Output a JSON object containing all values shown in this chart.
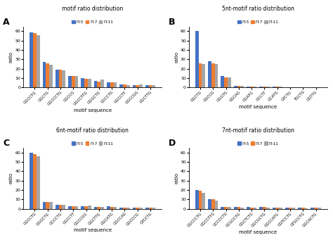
{
  "panels": {
    "A": {
      "title": "motif ratio distribution",
      "categories": [
        "GGCCTG",
        "GGCTG",
        "GGCCCTG",
        "GGCCG",
        "GGCCTTG",
        "GGGCTG",
        "GCCCTG",
        "GGCCTT",
        "GGCCGG",
        "GGCTTG"
      ],
      "II5": [
        59,
        27,
        19,
        12,
        10,
        7,
        5,
        3,
        2.5,
        2
      ],
      "II7": [
        58,
        26,
        19,
        12,
        9,
        6,
        5,
        3,
        2.5,
        2
      ],
      "II11": [
        56,
        24,
        18,
        12,
        9,
        8,
        5,
        2,
        3,
        2
      ]
    },
    "B": {
      "title": "5nt-motif ratio distribution",
      "categories": [
        "GGCTG",
        "GGCCG",
        "GGGTG",
        "GGCAG",
        "GGATG",
        "GCCTT",
        "GCATG",
        "GTCTG",
        "TGCTG",
        "GGTTG"
      ],
      "II5": [
        60,
        28,
        12,
        1.5,
        1.0,
        0.5,
        0.5,
        0.3,
        0.2,
        0.2
      ],
      "II7": [
        26,
        26,
        11,
        1.5,
        1.0,
        0.5,
        1.0,
        0.2,
        0.1,
        0.1
      ],
      "II11": [
        25,
        25,
        11,
        1.5,
        1.0,
        0.5,
        0.5,
        0.2,
        0.1,
        0.1
      ]
    },
    "C": {
      "title": "6nt-motif ratio distribution",
      "categories": [
        "GGCCTG",
        "GGGCTG",
        "GCCCTG",
        "GGCCTT",
        "GGCCGG",
        "GGCTTG",
        "GGCATG",
        "GGCCAG",
        "GGCCCG",
        "GTCCTG"
      ],
      "II5": [
        60,
        7,
        4,
        3,
        2.5,
        2,
        2.5,
        1.5,
        1.5,
        1.5
      ],
      "II7": [
        58,
        7,
        4,
        3,
        2.5,
        2,
        2,
        1.5,
        1,
        1.5
      ],
      "II11": [
        56,
        7,
        4,
        3,
        3.5,
        2,
        2,
        1.5,
        1,
        1.5
      ]
    },
    "D": {
      "title": "7nt-motif ratio distribution",
      "categories": [
        "GGCCCTG",
        "GGCCTTG",
        "GCCCCTG",
        "GCGCCTG",
        "GGCTCTG",
        "GGCGCTG",
        "GGCCATG",
        "GGTCCTG",
        "GTGCCTG",
        "GGCACTG"
      ],
      "II5": [
        20,
        10,
        2,
        2,
        2,
        2,
        1,
        1,
        1,
        1.5
      ],
      "II7": [
        19,
        10,
        2,
        2,
        1.5,
        2,
        1,
        1,
        1,
        1
      ],
      "II11": [
        17,
        9,
        2,
        1.5,
        1.5,
        1.5,
        1,
        1,
        0.5,
        1
      ]
    }
  },
  "colors": {
    "II5": "#4472c4",
    "II7": "#ed7d31",
    "II11": "#a5a5a5"
  },
  "ylim": [
    0,
    65
  ],
  "yticks": [
    0,
    10,
    20,
    30,
    40,
    50,
    60
  ],
  "ylabel": "ratio",
  "xlabel": "motif sequence",
  "legend_labels": [
    "Π-5",
    "Π-7",
    "Π-11"
  ],
  "panel_labels": [
    "A",
    "B",
    "C",
    "D"
  ]
}
